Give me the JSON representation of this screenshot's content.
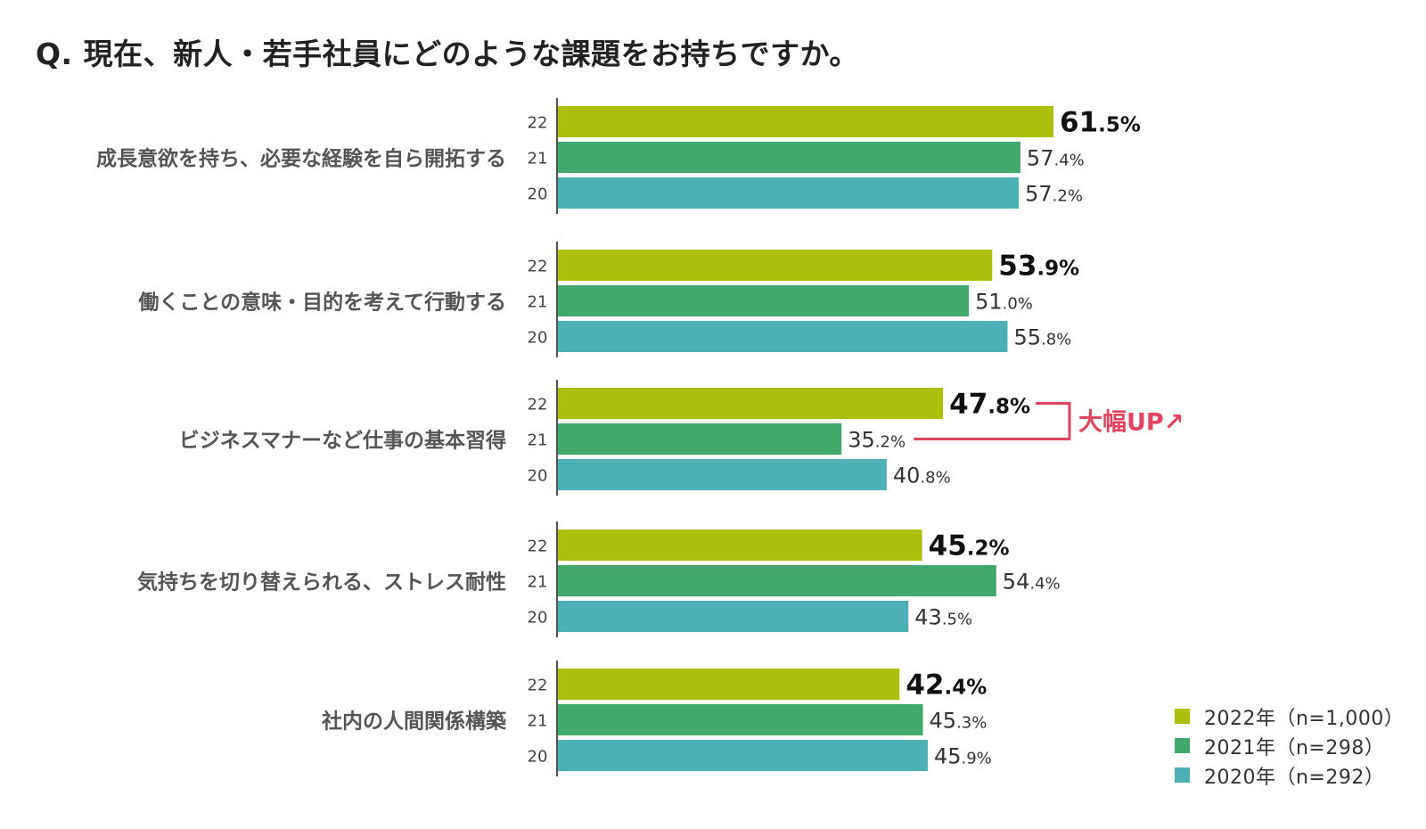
{
  "title": "Q. 現在、新人・若手社員にどのような課題をお持ちですか。",
  "colors": {
    "2022": "#abbf0c",
    "2021": "#40a96b",
    "2020": "#4eb0b7",
    "callout": "#e0455f",
    "axis": "#555555"
  },
  "chart_data": {
    "type": "bar",
    "orientation": "horizontal",
    "categories": [
      "成長意欲を持ち、必要な経験を自ら開拓する",
      "働くことの意味・目的を考えて行動する",
      "ビジネスマナーなど仕事の基本習得",
      "気持ちを切り替えられる、ストレス耐性",
      "社内の人間関係構築"
    ],
    "series": [
      {
        "name": "2022年（n=1,000）",
        "row_label": "22",
        "values": [
          61.5,
          53.9,
          47.8,
          45.2,
          42.4
        ]
      },
      {
        "name": "2021年（n=298）",
        "row_label": "21",
        "values": [
          57.4,
          51.0,
          35.2,
          54.4,
          45.3
        ]
      },
      {
        "name": "2020年（n=292）",
        "row_label": "20",
        "values": [
          57.2,
          55.8,
          40.8,
          43.5,
          45.9
        ]
      }
    ],
    "unit": "%",
    "xlim": [
      0,
      61.5
    ],
    "grid": false,
    "legend_position": "bottom-right",
    "annotation": {
      "text": "大幅UP↗",
      "category_index": 2
    }
  }
}
